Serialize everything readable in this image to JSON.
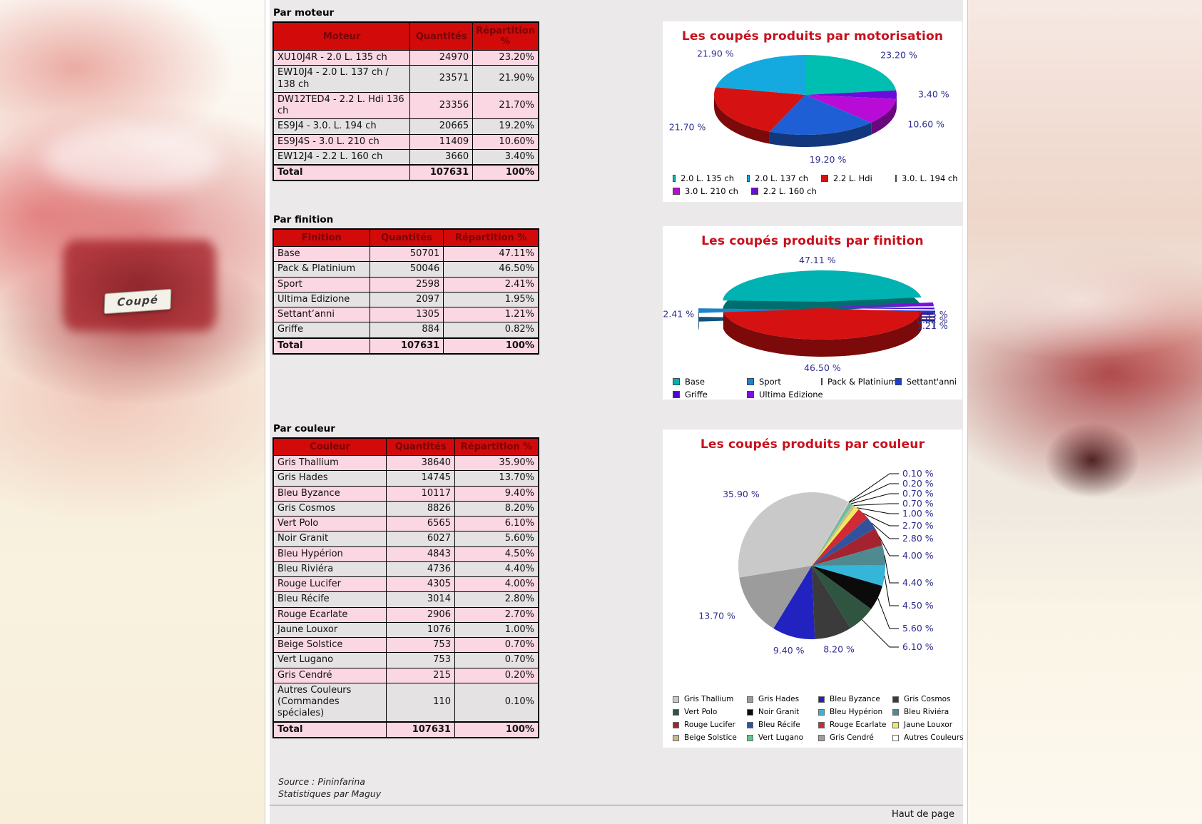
{
  "page": {
    "plate": "Coupé",
    "source_line1": "Source : Pininfarina",
    "source_line2": "Statistiques par Maguy",
    "bottom_link": "Haut de page"
  },
  "colors": {
    "table_header_bg": "#d20a0a",
    "table_header_text": "#7a0404",
    "row_pink": "#fad7e2",
    "row_grey": "#e4e2e2",
    "chart_title_red": "#c8101c",
    "percent_label_navy": "#2e2e8e",
    "content_bg": "#ebe9e9"
  },
  "tables": [
    {
      "section": "Par moteur",
      "headers": [
        "Moteur",
        "Quantités",
        "Répartition %"
      ],
      "rows": [
        [
          "XU10J4R - 2.0 L. 135 ch",
          "24970",
          "23.20%"
        ],
        [
          "EW10J4 - 2.0 L. 137 ch / 138 ch",
          "23571",
          "21.90%"
        ],
        [
          "DW12TED4 - 2.2 L. Hdi 136 ch",
          "23356",
          "21.70%"
        ],
        [
          "ES9J4 - 3.0. L. 194 ch",
          "20665",
          "19.20%"
        ],
        [
          "ES9J4S - 3.0 L. 210 ch",
          "11409",
          "10.60%"
        ],
        [
          "EW12J4 - 2.2 L. 160 ch",
          "3660",
          "3.40%"
        ]
      ],
      "total": [
        "Total",
        "107631",
        "100%"
      ]
    },
    {
      "section": "Par finition",
      "headers": [
        "Finition",
        "Quantités",
        "Répartition %"
      ],
      "rows": [
        [
          "Base",
          "50701",
          "47.11%"
        ],
        [
          "Pack & Platinium",
          "50046",
          "46.50%"
        ],
        [
          "Sport",
          "2598",
          "2.41%"
        ],
        [
          "Ultima Edizione",
          "2097",
          "1.95%"
        ],
        [
          "Settant’anni",
          "1305",
          "1.21%"
        ],
        [
          "Griffe",
          "884",
          "0.82%"
        ]
      ],
      "total": [
        "Total",
        "107631",
        "100%"
      ]
    },
    {
      "section": "Par couleur",
      "headers": [
        "Couleur",
        "Quantités",
        "Répartition %"
      ],
      "rows": [
        [
          "Gris Thallium",
          "38640",
          "35.90%"
        ],
        [
          "Gris Hades",
          "14745",
          "13.70%"
        ],
        [
          "Bleu Byzance",
          "10117",
          "9.40%"
        ],
        [
          "Gris Cosmos",
          "8826",
          "8.20%"
        ],
        [
          "Vert Polo",
          "6565",
          "6.10%"
        ],
        [
          "Noir Granit",
          "6027",
          "5.60%"
        ],
        [
          "Bleu Hypérion",
          "4843",
          "4.50%"
        ],
        [
          "Bleu Riviéra",
          "4736",
          "4.40%"
        ],
        [
          "Rouge Lucifer",
          "4305",
          "4.00%"
        ],
        [
          "Bleu Récife",
          "3014",
          "2.80%"
        ],
        [
          "Rouge Ecarlate",
          "2906",
          "2.70%"
        ],
        [
          "Jaune Louxor",
          "1076",
          "1.00%"
        ],
        [
          "Beige Solstice",
          "753",
          "0.70%"
        ],
        [
          "Vert Lugano",
          "753",
          "0.70%"
        ],
        [
          "Gris Cendré",
          "215",
          "0.20%"
        ],
        [
          "Autres Couleurs (Commandes spéciales)",
          "110",
          "0.10%"
        ]
      ],
      "total": [
        "Total",
        "107631",
        "100%"
      ]
    }
  ],
  "chart_data": [
    {
      "type": "pie",
      "variant": "3d",
      "title": "Les coupés produits par motorisation",
      "legend_position": "bottom",
      "slices": [
        {
          "name": "2.0 L. 135 ch",
          "value": 23.2,
          "label": "23.20 %",
          "color": "#00beb0"
        },
        {
          "name": "2.2 L. 160 ch",
          "value": 3.4,
          "label": "3.40 %",
          "color": "#6a0ddb"
        },
        {
          "name": "3.0 L. 210 ch",
          "value": 10.6,
          "label": "10.60 %",
          "color": "#b80cd6"
        },
        {
          "name": "3.0. L. 194 ch",
          "value": 19.2,
          "label": "19.20 %",
          "color": "#1f5fd6"
        },
        {
          "name": "2.2 L. Hdi",
          "value": 21.7,
          "label": "21.70 %",
          "color": "#d51111"
        },
        {
          "name": "2.0 L. 137 ch",
          "value": 21.9,
          "label": "21.90 %",
          "color": "#15aadf"
        }
      ],
      "legend_rows": [
        [
          {
            "label": "2.0 L. 135 ch",
            "color": "#00beb0"
          },
          {
            "label": "2.0 L. 137 ch",
            "color": "#15aadf"
          },
          {
            "label": "2.2 L. Hdi",
            "color": "#d51111"
          },
          {
            "label": "3.0. L. 194 ch",
            "color": "#1f5fd6"
          }
        ],
        [
          {
            "label": "3.0 L. 210 ch",
            "color": "#b80cd6"
          },
          {
            "label": "2.2 L. 160 ch",
            "color": "#6a0ddb"
          }
        ]
      ]
    },
    {
      "type": "pie",
      "variant": "3d-exploded",
      "title": "Les coupés produits par finition",
      "legend_position": "bottom",
      "slices": [
        {
          "name": "Base",
          "value": 47.11,
          "label": "47.11 %",
          "color": "#00b2b2"
        },
        {
          "name": "Ultima Edizione",
          "value": 1.95,
          "label": "1.95 %",
          "color": "#7d0fe0"
        },
        {
          "name": "Griffe",
          "value": 0.82,
          "label": "0.82 %",
          "color": "#4b0ac8"
        },
        {
          "name": "Settant’anni",
          "value": 1.21,
          "label": "1.21 %",
          "color": "#1a3fd4"
        },
        {
          "name": "Pack & Platinium",
          "value": 46.5,
          "label": "46.50 %",
          "color": "#d51111"
        },
        {
          "name": "Sport",
          "value": 2.41,
          "label": "2.41 %",
          "color": "#1d84c8"
        }
      ],
      "legend_rows": [
        [
          {
            "label": "Base",
            "color": "#00b2b2"
          },
          {
            "label": "Sport",
            "color": "#1d84c8"
          },
          {
            "label": "Pack & Platinium",
            "color": "#d51111"
          },
          {
            "label": "Settant'anni",
            "color": "#1a3fd4"
          }
        ],
        [
          {
            "label": "Griffe",
            "color": "#4b0ac8"
          },
          {
            "label": "Ultima Edizione",
            "color": "#7d0fe0"
          }
        ]
      ]
    },
    {
      "type": "pie",
      "variant": "flat",
      "title": "Les coupés produits par couleur",
      "legend_position": "bottom",
      "slices": [
        {
          "name": "Autres Couleurs",
          "value": 0.1,
          "label": "0.10 %",
          "color": "#ffffff"
        },
        {
          "name": "Gris Cendré",
          "value": 0.2,
          "label": "0.20 %",
          "color": "#a89a9c"
        },
        {
          "name": "Vert Lugano",
          "value": 0.7,
          "label": "0.70 %",
          "color": "#63c396"
        },
        {
          "name": "Beige Solstice",
          "value": 0.7,
          "label": "0.70 %",
          "color": "#c6bb91"
        },
        {
          "name": "Jaune Louxor",
          "value": 1.0,
          "label": "1.00 %",
          "color": "#f2ea5a"
        },
        {
          "name": "Rouge Ecarlate",
          "value": 2.7,
          "label": "2.70 %",
          "color": "#cf2a35"
        },
        {
          "name": "Bleu Récife",
          "value": 2.8,
          "label": "2.80 %",
          "color": "#32529e"
        },
        {
          "name": "Rouge Lucifer",
          "value": 4.0,
          "label": "4.00 %",
          "color": "#a3242f"
        },
        {
          "name": "Bleu Riviéra",
          "value": 4.4,
          "label": "4.40 %",
          "color": "#4f8a91"
        },
        {
          "name": "Bleu Hypérion",
          "value": 4.5,
          "label": "4.50 %",
          "color": "#35b6d9"
        },
        {
          "name": "Noir Granit",
          "value": 5.6,
          "label": "5.60 %",
          "color": "#0b0b0b"
        },
        {
          "name": "Vert Polo",
          "value": 6.1,
          "label": "6.10 %",
          "color": "#2f5540"
        },
        {
          "name": "Gris Cosmos",
          "value": 8.2,
          "label": "8.20 %",
          "color": "#3b3b3b"
        },
        {
          "name": "Bleu Byzance",
          "value": 9.4,
          "label": "9.40 %",
          "color": "#2222c0"
        },
        {
          "name": "Gris Hades",
          "value": 13.7,
          "label": "13.70 %",
          "color": "#9c9c9c"
        },
        {
          "name": "Gris Thallium",
          "value": 35.9,
          "label": "35.90 %",
          "color": "#c9c9c9"
        }
      ],
      "legend_rows": [
        [
          {
            "label": "Gris Thallium",
            "color": "#c9c9c9"
          },
          {
            "label": "Gris Hades",
            "color": "#9c9c9c"
          },
          {
            "label": "Bleu Byzance",
            "color": "#2222c0"
          },
          {
            "label": "Gris Cosmos",
            "color": "#3b3b3b"
          }
        ],
        [
          {
            "label": "Vert Polo",
            "color": "#2f5540"
          },
          {
            "label": "Noir Granit",
            "color": "#0b0b0b"
          },
          {
            "label": "Bleu Hypérion",
            "color": "#35b6d9"
          },
          {
            "label": "Bleu Riviéra",
            "color": "#4f8a91"
          }
        ],
        [
          {
            "label": "Rouge Lucifer",
            "color": "#a3242f"
          },
          {
            "label": "Bleu Récife",
            "color": "#32529e"
          },
          {
            "label": "Rouge Ecarlate",
            "color": "#cf2a35"
          },
          {
            "label": "Jaune Louxor",
            "color": "#f2ea5a"
          }
        ],
        [
          {
            "label": "Beige Solstice",
            "color": "#c6bb91"
          },
          {
            "label": "Vert Lugano",
            "color": "#63c396"
          },
          {
            "label": "Gris Cendré",
            "color": "#a89a9c"
          },
          {
            "label": "Autres Couleurs",
            "color": "#ffffff"
          }
        ]
      ]
    }
  ]
}
